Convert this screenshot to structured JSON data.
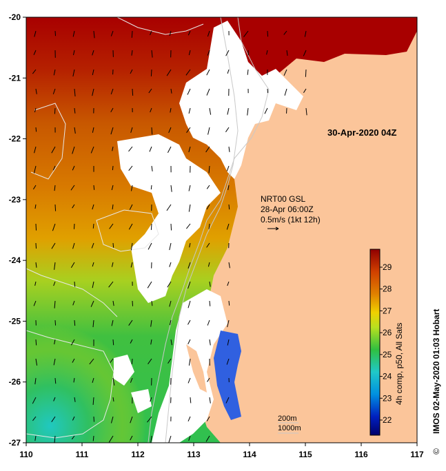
{
  "map": {
    "date_label": "30-Apr-2020 04Z",
    "wind_info": {
      "line1": "NRT00 GSL",
      "line2": "28-Apr 06:00Z",
      "line3": "0.5m/s (1kt 12h)"
    },
    "contour_labels": {
      "line1": "200m",
      "line2": "1000m"
    },
    "x_ticks": [
      "110",
      "111",
      "112",
      "113",
      "114",
      "115",
      "116",
      "117"
    ],
    "y_ticks": [
      "-20",
      "-21",
      "-22",
      "-23",
      "-24",
      "-25",
      "-26",
      "-27"
    ],
    "colorbar": {
      "ticks": [
        "22",
        "23",
        "24",
        "25",
        "26",
        "27",
        "28",
        "29"
      ],
      "caption": "4h comp, p50, All Sats"
    },
    "credit": "IMOS 02-May-2020 01:03 Hobart",
    "copyright_symbol": "©",
    "colors": {
      "land": "#fbc59a",
      "no_data": "#ffffff",
      "temp_high": "#a00000",
      "temp_low": "#20c8c8"
    }
  }
}
